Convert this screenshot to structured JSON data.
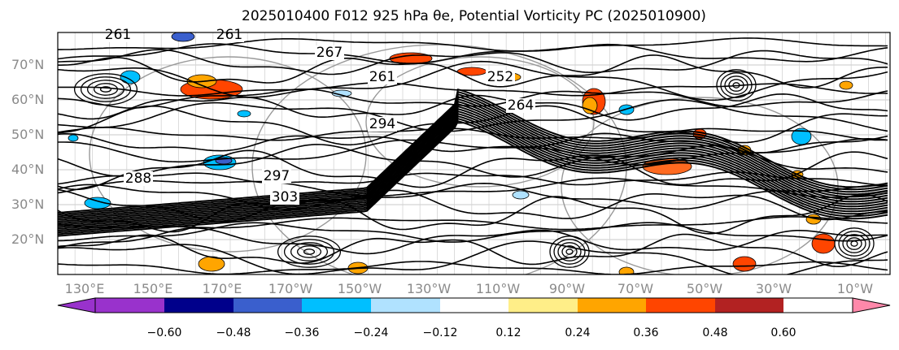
{
  "title": "2025010400 F012 925 hPa θe, Potential Vorticity PC (2025010900)",
  "lat_labels": [
    "70°N",
    "60°N",
    "50°N",
    "40°N",
    "30°N",
    "20°N"
  ],
  "lon_labels": [
    "130°E",
    "150°E",
    "170°E",
    "170°W",
    "150°W",
    "130°W",
    "110°W",
    "90°W",
    "70°W",
    "50°W",
    "30°W",
    "10°W"
  ],
  "contour_labels": [
    "261",
    "261",
    "267",
    "261",
    "294",
    "297",
    "303",
    "288",
    "252",
    "264"
  ],
  "colorbar": {
    "ticks": [
      "−0.60",
      "−0.48",
      "−0.36",
      "−0.24",
      "−0.12",
      "0.12",
      "0.24",
      "0.36",
      "0.48",
      "0.60"
    ],
    "colors": [
      "#9932cc",
      "#00008b",
      "#3a5fcd",
      "#00bfff",
      "#b0e2ff",
      "#ffffff",
      "#ffee88",
      "#ffa500",
      "#ff4500",
      "#b22222",
      "#ff88aa",
      "#ff88aa"
    ]
  }
}
